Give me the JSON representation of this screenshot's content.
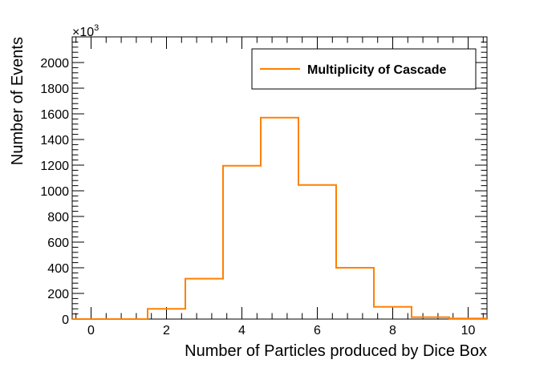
{
  "chart_data": {
    "type": "bar",
    "style": "step-histogram",
    "xlabel": "Number of Particles produced by Dice Box",
    "ylabel": "Number of Events",
    "y_multiplier_label": "×10",
    "y_multiplier_exponent": "3",
    "xlim": [
      -0.5,
      10.5
    ],
    "ylim": [
      0,
      2200
    ],
    "x_ticks": [
      0,
      2,
      4,
      6,
      8,
      10
    ],
    "y_ticks": [
      0,
      200,
      400,
      600,
      800,
      1000,
      1200,
      1400,
      1600,
      1800,
      2000
    ],
    "grid": false,
    "legend_position": "top-right",
    "series": [
      {
        "name": "Multiplicity of Cascade",
        "color": "#ff8000",
        "x": [
          0,
          1,
          2,
          3,
          4,
          5,
          6,
          7,
          8,
          9,
          10
        ],
        "values": [
          0,
          0,
          80,
          315,
          1195,
          1570,
          1045,
          400,
          95,
          15,
          5
        ]
      }
    ]
  }
}
